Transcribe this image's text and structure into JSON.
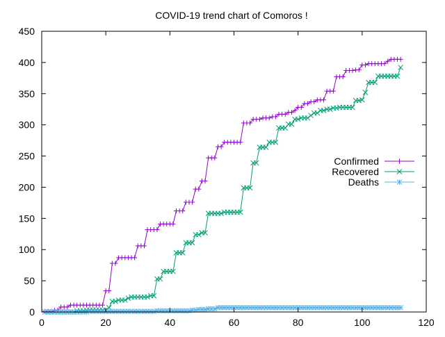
{
  "chart_data": {
    "type": "line",
    "title": "COVID-19 trend chart of Comoros !",
    "xlabel": "",
    "ylabel": "",
    "xlim": [
      0,
      120
    ],
    "ylim": [
      0,
      450
    ],
    "x_ticks": [
      0,
      20,
      40,
      60,
      80,
      100,
      120
    ],
    "y_ticks": [
      0,
      50,
      100,
      150,
      200,
      250,
      300,
      350,
      400,
      450
    ],
    "grid": false,
    "legend_position": "right",
    "series": [
      {
        "name": "Confirmed",
        "color": "#9400d3",
        "marker": "plus",
        "values": [
          [
            1,
            1
          ],
          [
            2,
            1
          ],
          [
            3,
            1
          ],
          [
            4,
            3
          ],
          [
            5,
            3
          ],
          [
            6,
            8
          ],
          [
            7,
            8
          ],
          [
            8,
            8
          ],
          [
            9,
            11
          ],
          [
            10,
            11
          ],
          [
            11,
            11
          ],
          [
            12,
            11
          ],
          [
            13,
            11
          ],
          [
            14,
            11
          ],
          [
            15,
            11
          ],
          [
            16,
            11
          ],
          [
            17,
            11
          ],
          [
            18,
            11
          ],
          [
            19,
            11
          ],
          [
            20,
            34
          ],
          [
            21,
            34
          ],
          [
            22,
            78
          ],
          [
            23,
            78
          ],
          [
            24,
            87
          ],
          [
            25,
            87
          ],
          [
            26,
            87
          ],
          [
            27,
            87
          ],
          [
            28,
            87
          ],
          [
            29,
            87
          ],
          [
            30,
            106
          ],
          [
            31,
            106
          ],
          [
            32,
            106
          ],
          [
            33,
            132
          ],
          [
            34,
            132
          ],
          [
            35,
            132
          ],
          [
            36,
            132
          ],
          [
            37,
            141
          ],
          [
            38,
            141
          ],
          [
            39,
            141
          ],
          [
            40,
            141
          ],
          [
            41,
            141
          ],
          [
            42,
            162
          ],
          [
            43,
            162
          ],
          [
            44,
            162
          ],
          [
            45,
            176
          ],
          [
            46,
            176
          ],
          [
            47,
            176
          ],
          [
            48,
            197
          ],
          [
            49,
            197
          ],
          [
            50,
            210
          ],
          [
            51,
            210
          ],
          [
            52,
            247
          ],
          [
            53,
            247
          ],
          [
            54,
            247
          ],
          [
            55,
            265
          ],
          [
            56,
            265
          ],
          [
            57,
            272
          ],
          [
            58,
            272
          ],
          [
            59,
            272
          ],
          [
            60,
            272
          ],
          [
            61,
            272
          ],
          [
            62,
            272
          ],
          [
            63,
            303
          ],
          [
            64,
            303
          ],
          [
            65,
            303
          ],
          [
            66,
            309
          ],
          [
            67,
            309
          ],
          [
            68,
            309
          ],
          [
            69,
            311
          ],
          [
            70,
            311
          ],
          [
            71,
            311
          ],
          [
            72,
            313
          ],
          [
            73,
            313
          ],
          [
            74,
            317
          ],
          [
            75,
            317
          ],
          [
            76,
            317
          ],
          [
            77,
            320
          ],
          [
            78,
            320
          ],
          [
            79,
            323
          ],
          [
            80,
            328
          ],
          [
            81,
            328
          ],
          [
            82,
            334
          ],
          [
            83,
            334
          ],
          [
            84,
            337
          ],
          [
            85,
            337
          ],
          [
            86,
            340
          ],
          [
            87,
            340
          ],
          [
            88,
            340
          ],
          [
            89,
            354
          ],
          [
            90,
            354
          ],
          [
            91,
            354
          ],
          [
            92,
            377
          ],
          [
            93,
            377
          ],
          [
            94,
            377
          ],
          [
            95,
            387
          ],
          [
            96,
            387
          ],
          [
            97,
            387
          ],
          [
            98,
            388
          ],
          [
            99,
            388
          ],
          [
            100,
            396
          ],
          [
            101,
            396
          ],
          [
            102,
            398
          ],
          [
            103,
            398
          ],
          [
            104,
            398
          ],
          [
            105,
            398
          ],
          [
            106,
            398
          ],
          [
            107,
            398
          ],
          [
            108,
            402
          ],
          [
            109,
            405
          ],
          [
            110,
            405
          ],
          [
            111,
            405
          ],
          [
            112,
            405
          ]
        ]
      },
      {
        "name": "Recovered",
        "color": "#009e73",
        "marker": "cross",
        "values": [
          [
            1,
            0
          ],
          [
            2,
            0
          ],
          [
            3,
            0
          ],
          [
            4,
            0
          ],
          [
            5,
            0
          ],
          [
            6,
            0
          ],
          [
            7,
            0
          ],
          [
            8,
            0
          ],
          [
            9,
            0
          ],
          [
            10,
            0
          ],
          [
            11,
            2
          ],
          [
            12,
            2
          ],
          [
            13,
            2
          ],
          [
            14,
            3
          ],
          [
            15,
            3
          ],
          [
            16,
            3
          ],
          [
            17,
            3
          ],
          [
            18,
            3
          ],
          [
            19,
            3
          ],
          [
            20,
            3
          ],
          [
            21,
            7
          ],
          [
            22,
            17
          ],
          [
            23,
            17
          ],
          [
            24,
            19
          ],
          [
            25,
            19
          ],
          [
            26,
            19
          ],
          [
            27,
            22
          ],
          [
            28,
            24
          ],
          [
            29,
            24
          ],
          [
            30,
            24
          ],
          [
            31,
            24
          ],
          [
            32,
            24
          ],
          [
            33,
            24
          ],
          [
            34,
            26
          ],
          [
            35,
            26
          ],
          [
            36,
            53
          ],
          [
            37,
            53
          ],
          [
            38,
            65
          ],
          [
            39,
            65
          ],
          [
            40,
            65
          ],
          [
            41,
            65
          ],
          [
            42,
            95
          ],
          [
            43,
            95
          ],
          [
            44,
            95
          ],
          [
            45,
            111
          ],
          [
            46,
            111
          ],
          [
            47,
            111
          ],
          [
            48,
            124
          ],
          [
            49,
            124
          ],
          [
            50,
            127
          ],
          [
            51,
            127
          ],
          [
            52,
            158
          ],
          [
            53,
            158
          ],
          [
            54,
            158
          ],
          [
            55,
            158
          ],
          [
            56,
            158
          ],
          [
            57,
            160
          ],
          [
            58,
            160
          ],
          [
            59,
            160
          ],
          [
            60,
            160
          ],
          [
            61,
            160
          ],
          [
            62,
            160
          ],
          [
            63,
            199
          ],
          [
            64,
            199
          ],
          [
            65,
            199
          ],
          [
            66,
            239
          ],
          [
            67,
            239
          ],
          [
            68,
            264
          ],
          [
            69,
            264
          ],
          [
            70,
            264
          ],
          [
            71,
            272
          ],
          [
            72,
            272
          ],
          [
            73,
            272
          ],
          [
            74,
            295
          ],
          [
            75,
            295
          ],
          [
            76,
            295
          ],
          [
            77,
            301
          ],
          [
            78,
            301
          ],
          [
            79,
            309
          ],
          [
            80,
            309
          ],
          [
            81,
            311
          ],
          [
            82,
            311
          ],
          [
            83,
            311
          ],
          [
            84,
            315
          ],
          [
            85,
            319
          ],
          [
            86,
            319
          ],
          [
            87,
            323
          ],
          [
            88,
            323
          ],
          [
            89,
            325
          ],
          [
            90,
            325
          ],
          [
            91,
            327
          ],
          [
            92,
            327
          ],
          [
            93,
            328
          ],
          [
            94,
            328
          ],
          [
            95,
            328
          ],
          [
            96,
            328
          ],
          [
            97,
            328
          ],
          [
            98,
            339
          ],
          [
            99,
            339
          ],
          [
            100,
            340
          ],
          [
            101,
            352
          ],
          [
            102,
            368
          ],
          [
            103,
            368
          ],
          [
            104,
            368
          ],
          [
            105,
            378
          ],
          [
            106,
            378
          ],
          [
            107,
            378
          ],
          [
            108,
            378
          ],
          [
            109,
            378
          ],
          [
            110,
            378
          ],
          [
            111,
            378
          ],
          [
            112,
            392
          ]
        ]
      },
      {
        "name": "Deaths",
        "color": "#56b4e9",
        "marker": "star",
        "values": [
          [
            1,
            0
          ],
          [
            2,
            0
          ],
          [
            3,
            0
          ],
          [
            4,
            0
          ],
          [
            5,
            0
          ],
          [
            6,
            0
          ],
          [
            7,
            0
          ],
          [
            8,
            0
          ],
          [
            9,
            0
          ],
          [
            10,
            0
          ],
          [
            11,
            0
          ],
          [
            12,
            0
          ],
          [
            13,
            0
          ],
          [
            14,
            0
          ],
          [
            15,
            1
          ],
          [
            16,
            1
          ],
          [
            17,
            1
          ],
          [
            18,
            1
          ],
          [
            19,
            1
          ],
          [
            20,
            1
          ],
          [
            21,
            1
          ],
          [
            22,
            1
          ],
          [
            23,
            1
          ],
          [
            24,
            1
          ],
          [
            25,
            1
          ],
          [
            26,
            1
          ],
          [
            27,
            1
          ],
          [
            28,
            1
          ],
          [
            29,
            1
          ],
          [
            30,
            1
          ],
          [
            31,
            1
          ],
          [
            32,
            1
          ],
          [
            33,
            1
          ],
          [
            34,
            1
          ],
          [
            35,
            1
          ],
          [
            36,
            2
          ],
          [
            37,
            2
          ],
          [
            38,
            2
          ],
          [
            39,
            2
          ],
          [
            40,
            2
          ],
          [
            41,
            2
          ],
          [
            42,
            2
          ],
          [
            43,
            2
          ],
          [
            44,
            2
          ],
          [
            45,
            2
          ],
          [
            46,
            2
          ],
          [
            47,
            3
          ],
          [
            48,
            3
          ],
          [
            49,
            4
          ],
          [
            50,
            4
          ],
          [
            51,
            4
          ],
          [
            52,
            5
          ],
          [
            53,
            5
          ],
          [
            54,
            5
          ],
          [
            55,
            7
          ],
          [
            56,
            7
          ],
          [
            57,
            7
          ],
          [
            58,
            7
          ],
          [
            59,
            7
          ],
          [
            60,
            7
          ],
          [
            61,
            7
          ],
          [
            62,
            7
          ],
          [
            63,
            7
          ],
          [
            64,
            7
          ],
          [
            65,
            7
          ],
          [
            66,
            7
          ],
          [
            67,
            7
          ],
          [
            68,
            7
          ],
          [
            69,
            7
          ],
          [
            70,
            7
          ],
          [
            71,
            7
          ],
          [
            72,
            7
          ],
          [
            73,
            7
          ],
          [
            74,
            7
          ],
          [
            75,
            7
          ],
          [
            76,
            7
          ],
          [
            77,
            7
          ],
          [
            78,
            7
          ],
          [
            79,
            7
          ],
          [
            80,
            7
          ],
          [
            81,
            7
          ],
          [
            82,
            7
          ],
          [
            83,
            7
          ],
          [
            84,
            7
          ],
          [
            85,
            7
          ],
          [
            86,
            7
          ],
          [
            87,
            7
          ],
          [
            88,
            7
          ],
          [
            89,
            7
          ],
          [
            90,
            7
          ],
          [
            91,
            7
          ],
          [
            92,
            7
          ],
          [
            93,
            7
          ],
          [
            94,
            7
          ],
          [
            95,
            7
          ],
          [
            96,
            7
          ],
          [
            97,
            7
          ],
          [
            98,
            7
          ],
          [
            99,
            7
          ],
          [
            100,
            7
          ],
          [
            101,
            7
          ],
          [
            102,
            7
          ],
          [
            103,
            7
          ],
          [
            104,
            7
          ],
          [
            105,
            7
          ],
          [
            106,
            7
          ],
          [
            107,
            7
          ],
          [
            108,
            7
          ],
          [
            109,
            7
          ],
          [
            110,
            7
          ],
          [
            111,
            7
          ],
          [
            112,
            7
          ]
        ]
      }
    ]
  }
}
